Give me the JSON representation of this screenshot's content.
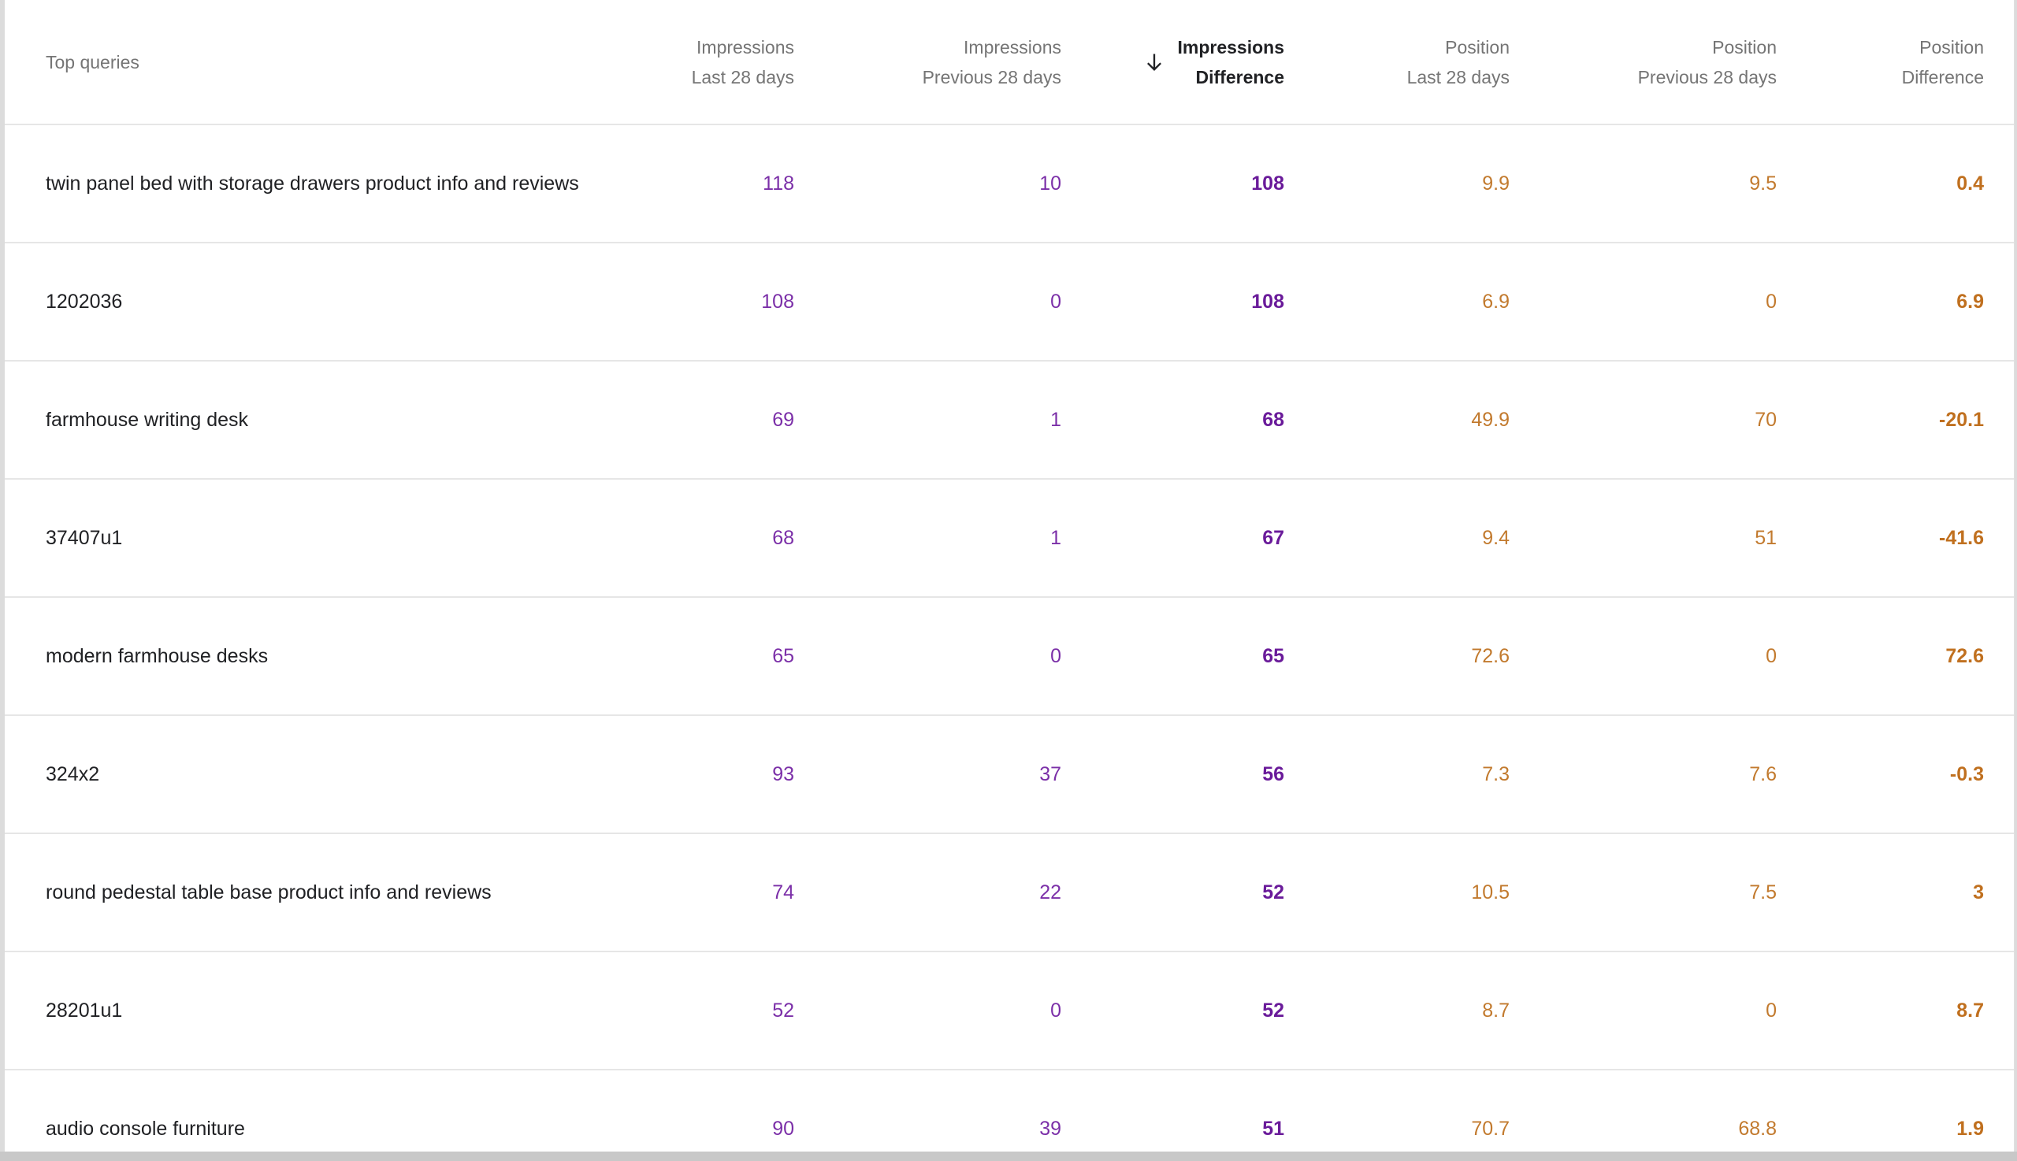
{
  "table": {
    "columns": [
      {
        "l1": "Top queries",
        "l2": ""
      },
      {
        "l1": "Impressions",
        "l2": "Last 28 days"
      },
      {
        "l1": "Impressions",
        "l2": "Previous 28 days"
      },
      {
        "l1": "Impressions",
        "l2": "Difference"
      },
      {
        "l1": "Position",
        "l2": "Last 28 days"
      },
      {
        "l1": "Position",
        "l2": "Previous 28 days"
      },
      {
        "l1": "Position",
        "l2": "Difference"
      }
    ],
    "rows": [
      {
        "query": "twin panel bed with storage drawers product info and reviews",
        "imp_last": "118",
        "imp_prev": "10",
        "imp_diff": "108",
        "pos_last": "9.9",
        "pos_prev": "9.5",
        "pos_diff": "0.4"
      },
      {
        "query": "1202036",
        "imp_last": "108",
        "imp_prev": "0",
        "imp_diff": "108",
        "pos_last": "6.9",
        "pos_prev": "0",
        "pos_diff": "6.9"
      },
      {
        "query": "farmhouse writing desk",
        "imp_last": "69",
        "imp_prev": "1",
        "imp_diff": "68",
        "pos_last": "49.9",
        "pos_prev": "70",
        "pos_diff": "-20.1"
      },
      {
        "query": "37407u1",
        "imp_last": "68",
        "imp_prev": "1",
        "imp_diff": "67",
        "pos_last": "9.4",
        "pos_prev": "51",
        "pos_diff": "-41.6"
      },
      {
        "query": "modern farmhouse desks",
        "imp_last": "65",
        "imp_prev": "0",
        "imp_diff": "65",
        "pos_last": "72.6",
        "pos_prev": "0",
        "pos_diff": "72.6"
      },
      {
        "query": "324x2",
        "imp_last": "93",
        "imp_prev": "37",
        "imp_diff": "56",
        "pos_last": "7.3",
        "pos_prev": "7.6",
        "pos_diff": "-0.3"
      },
      {
        "query": "round pedestal table base product info and reviews",
        "imp_last": "74",
        "imp_prev": "22",
        "imp_diff": "52",
        "pos_last": "10.5",
        "pos_prev": "7.5",
        "pos_diff": "3"
      },
      {
        "query": "28201u1",
        "imp_last": "52",
        "imp_prev": "0",
        "imp_diff": "52",
        "pos_last": "8.7",
        "pos_prev": "0",
        "pos_diff": "8.7"
      },
      {
        "query": "audio console furniture",
        "imp_last": "90",
        "imp_prev": "39",
        "imp_diff": "51",
        "pos_last": "70.7",
        "pos_prev": "68.8",
        "pos_diff": "1.9"
      }
    ]
  },
  "colors": {
    "impressions": "#7b2fa8",
    "position": "#c27a2e"
  },
  "icons": {
    "sort": "arrow-down-icon"
  }
}
